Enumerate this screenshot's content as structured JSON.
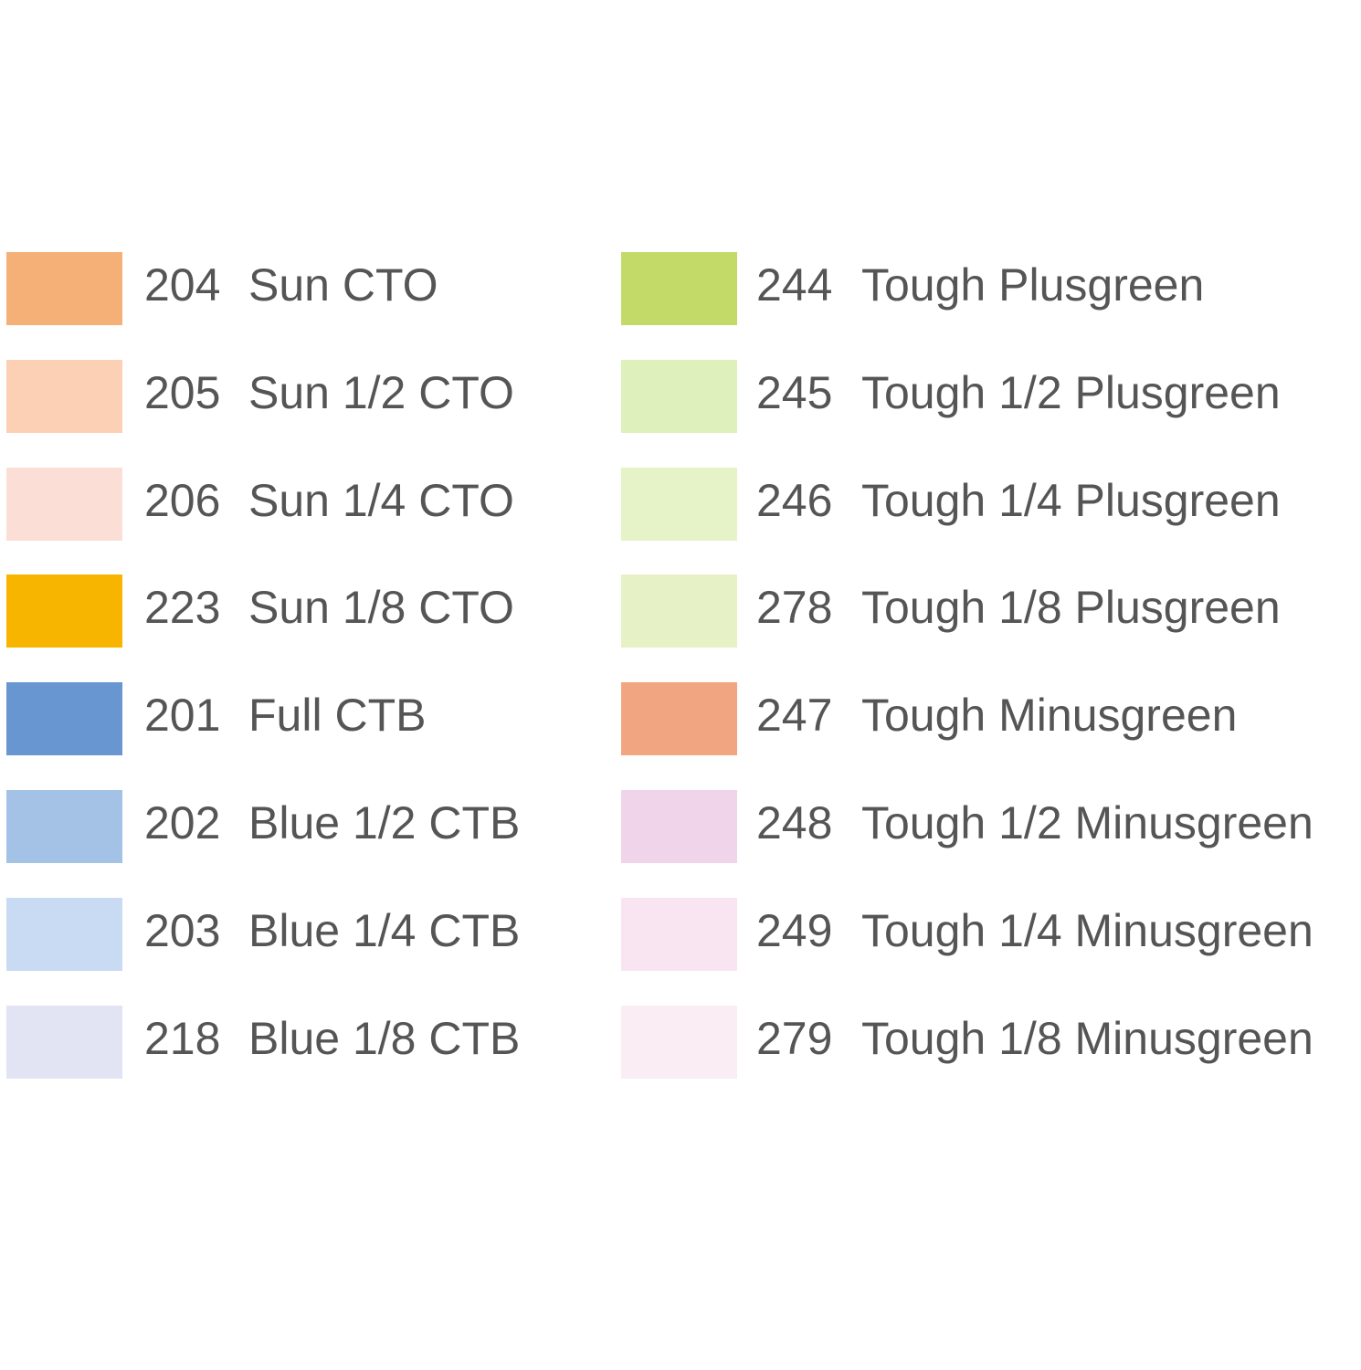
{
  "columns": [
    {
      "items": [
        {
          "code": "204",
          "name": "Sun CTO",
          "color": "#f5b078"
        },
        {
          "code": "205",
          "name": "Sun 1/2 CTO",
          "color": "#fcd0b4"
        },
        {
          "code": "206",
          "name": "Sun 1/4 CTO",
          "color": "#fbdfd6"
        },
        {
          "code": "223",
          "name": "Sun 1/8 CTO",
          "color": "#f7b500"
        },
        {
          "code": "201",
          "name": "Full CTB",
          "color": "#6896d0"
        },
        {
          "code": "202",
          "name": "Blue 1/2 CTB",
          "color": "#a4c2e6"
        },
        {
          "code": "203",
          "name": "Blue 1/4 CTB",
          "color": "#c9dbf2"
        },
        {
          "code": "218",
          "name": "Blue 1/8 CTB",
          "color": "#e3e4f3"
        }
      ]
    },
    {
      "items": [
        {
          "code": "244",
          "name": "Tough Plusgreen",
          "color": "#c3da68"
        },
        {
          "code": "245",
          "name": "Tough 1/2 Plusgreen",
          "color": "#def0bb"
        },
        {
          "code": "246",
          "name": "Tough 1/4 Plusgreen",
          "color": "#e6f2c8"
        },
        {
          "code": "278",
          "name": "Tough 1/8 Plusgreen",
          "color": "#e6f2c6"
        },
        {
          "code": "247",
          "name": "Tough Minusgreen",
          "color": "#f2a581"
        },
        {
          "code": "248",
          "name": "Tough 1/2 Minusgreen",
          "color": "#f0d5ea"
        },
        {
          "code": "249",
          "name": "Tough 1/4 Minusgreen",
          "color": "#f8e5f1"
        },
        {
          "code": "279",
          "name": "Tough 1/8 Minusgreen",
          "color": "#fbedf4"
        }
      ]
    }
  ]
}
